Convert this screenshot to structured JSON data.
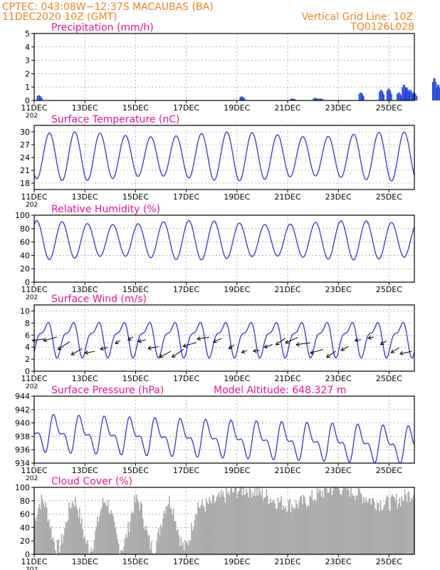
{
  "header": {
    "line1": "CPTEC:   043:08W−12:37S   MACAUBAS (BA)",
    "line2": "11DEC2020  10Z (GMT)",
    "right1": "Vertical Grid Line: 10Z",
    "right2": "TQ0126L028",
    "color": "#f58220"
  },
  "colors": {
    "title": "#ee1199",
    "line": "#3333dd",
    "bar": "#2244dd",
    "cloud": "#aaaaaa",
    "wind_arrow": "#000000"
  },
  "x_ticks": [
    "11DEC",
    "13DEC",
    "15DEC",
    "17DEC",
    "19DEC",
    "21DEC",
    "23DEC",
    "25DEC"
  ],
  "year_fragment": "202",
  "chart_data": [
    {
      "type": "bar",
      "title": "Precipitation (mm/h)",
      "ylim": [
        0,
        5
      ],
      "yticks": [
        "0",
        "1",
        "2",
        "3",
        "4",
        "5"
      ],
      "events": [
        {
          "day": 0.1,
          "value": 0.4
        },
        {
          "day": 8.1,
          "value": 0.3
        },
        {
          "day": 10.1,
          "value": 0.15
        },
        {
          "day": 11.0,
          "value": 0.2
        },
        {
          "day": 11.2,
          "value": 0.15
        },
        {
          "day": 12.8,
          "value": 0.6
        },
        {
          "day": 13.6,
          "value": 0.8
        },
        {
          "day": 13.9,
          "value": 0.9
        },
        {
          "day": 14.3,
          "value": 0.6
        },
        {
          "day": 14.5,
          "value": 1.2
        },
        {
          "day": 14.6,
          "value": 1.0
        },
        {
          "day": 14.75,
          "value": 0.8
        },
        {
          "day": 14.9,
          "value": 0.6
        },
        {
          "day": 15.7,
          "value": 1.7
        },
        {
          "day": 15.85,
          "value": 1.2
        }
      ]
    },
    {
      "type": "line",
      "title": "Surface Temperature (nC)",
      "ylim": [
        16.5,
        31.5
      ],
      "yticks": [
        "18",
        "21",
        "24",
        "27",
        "30"
      ],
      "max": 30,
      "min": 18.5
    },
    {
      "type": "line",
      "title": "Relative Humidity (%)",
      "ylim": [
        0,
        100
      ],
      "yticks": [
        "0",
        "20",
        "40",
        "60",
        "80",
        "100"
      ],
      "max": 92,
      "min": 33
    },
    {
      "type": "line",
      "title": "Surface Wind (m/s)",
      "ylim": [
        0,
        11
      ],
      "yticks": [
        "0",
        "2",
        "4",
        "6",
        "8",
        "10"
      ],
      "max": 9,
      "min": 2
    },
    {
      "type": "line",
      "title": "Surface Pressure (hPa)",
      "annotation": "Model Altitude: 648.327  m",
      "ylim": [
        934,
        944
      ],
      "yticks": [
        "934",
        "936",
        "938",
        "940",
        "942",
        "944"
      ],
      "max": 942,
      "min": 935
    },
    {
      "type": "area",
      "title": "Cloud Cover (%)",
      "ylim": [
        0,
        100
      ],
      "yticks": [
        "0",
        "20",
        "40",
        "60",
        "80",
        "100"
      ],
      "max": 97,
      "min": 5
    }
  ]
}
